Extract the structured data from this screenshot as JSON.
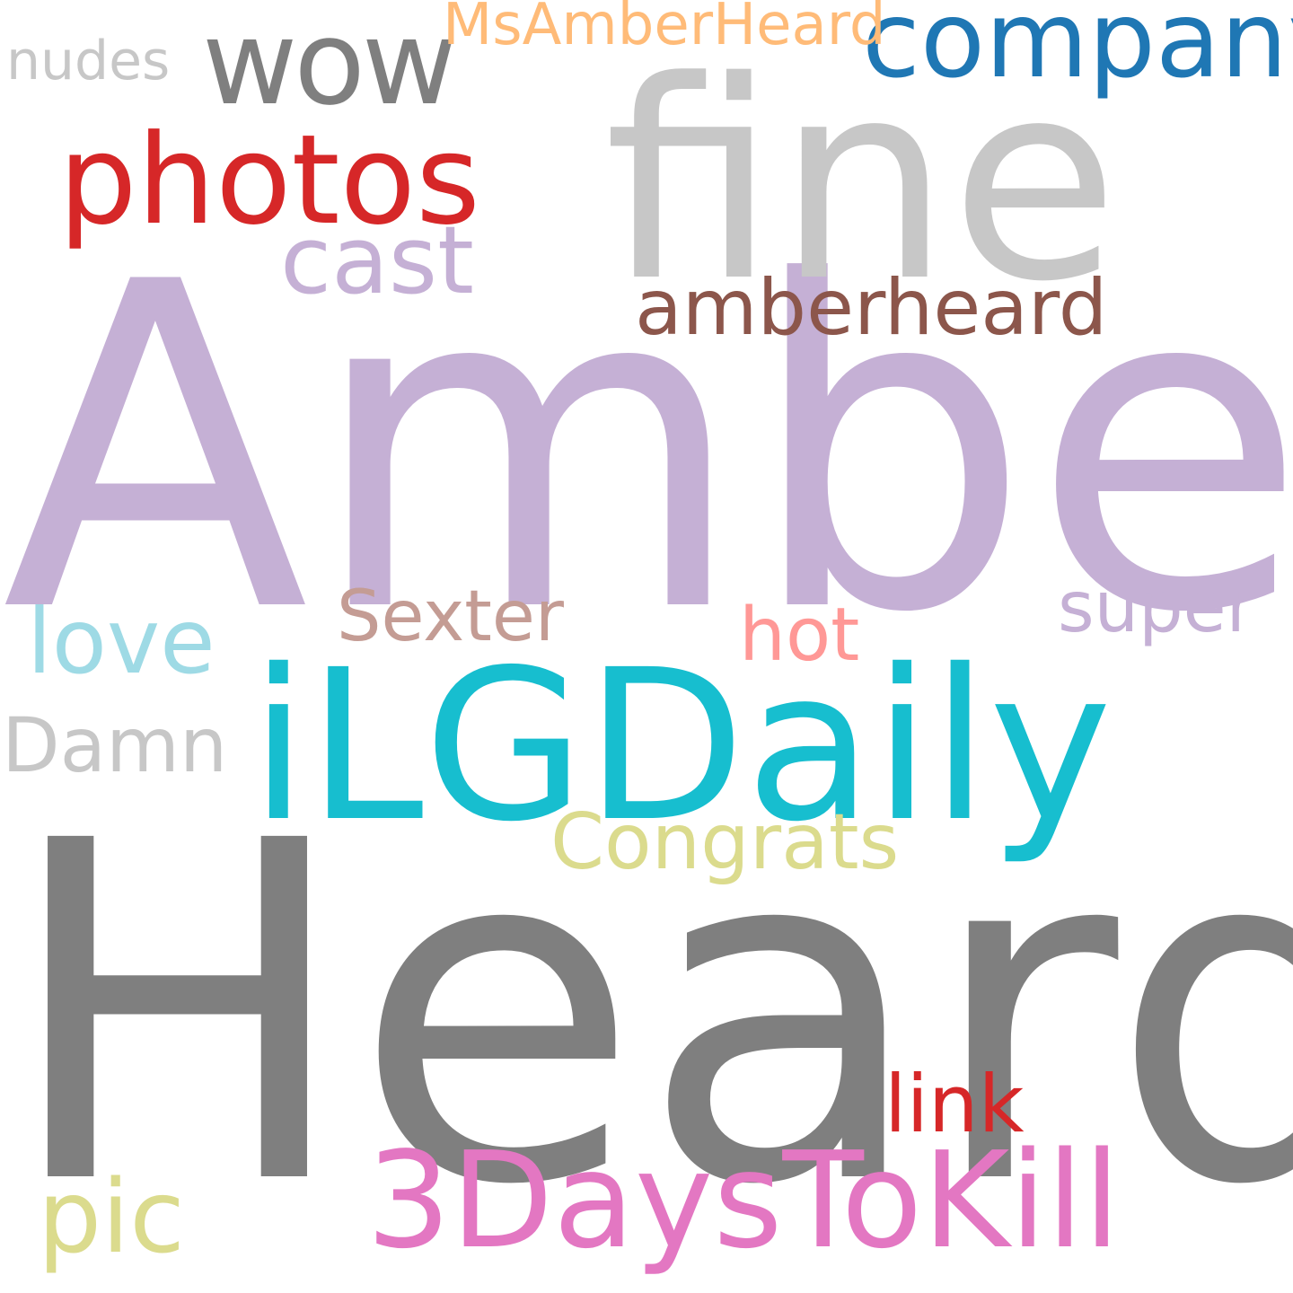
{
  "word_cloud": {
    "background": "#ffffff",
    "words": [
      {
        "text": "Heard",
        "color": "#7f7f7f"
      },
      {
        "text": "Amber",
        "color": "#c5b0d5"
      },
      {
        "text": "iLGDaily",
        "color": "#17becf"
      },
      {
        "text": "fine",
        "color": "#c7c7c7"
      },
      {
        "text": "3DaysToKill",
        "color": "#e377c2"
      },
      {
        "text": "photos",
        "color": "#d62728"
      },
      {
        "text": "company",
        "color": "#1f77b4"
      },
      {
        "text": "wow",
        "color": "#7f7f7f"
      },
      {
        "text": "amberheard",
        "color": "#8c564b"
      },
      {
        "text": "cast",
        "color": "#c5b0d5"
      },
      {
        "text": "pic",
        "color": "#dbdb8d"
      },
      {
        "text": "love",
        "color": "#9edae5"
      },
      {
        "text": "Congrats",
        "color": "#dbdb8d"
      },
      {
        "text": "Damn",
        "color": "#c7c7c7"
      },
      {
        "text": "Sexter",
        "color": "#c49c94"
      },
      {
        "text": "hot",
        "color": "#ff9896"
      },
      {
        "text": "super",
        "color": "#c5b0d5"
      },
      {
        "text": "link",
        "color": "#d62728"
      },
      {
        "text": "MsAmberHeard",
        "color": "#ffbb78"
      },
      {
        "text": "nudes",
        "color": "#c7c7c7"
      }
    ]
  }
}
